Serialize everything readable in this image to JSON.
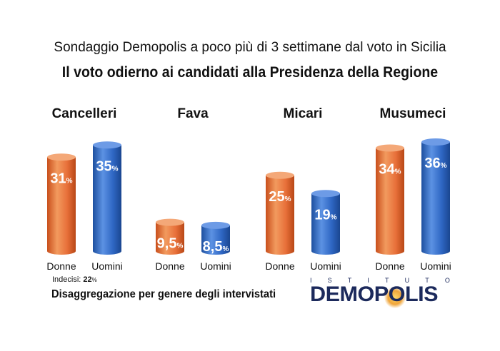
{
  "header": {
    "subtitle": "Sondaggio Demopolis a poco più di 3 settimane dal voto in Sicilia",
    "title": "Il voto odierno ai candidati alla Presidenza della Regione"
  },
  "chart_data": {
    "type": "bar",
    "categories": [
      "Cancelleri",
      "Fava",
      "Micari",
      "Musumeci"
    ],
    "series": [
      {
        "name": "Donne",
        "values": [
          31,
          9.5,
          25,
          34
        ],
        "labels": [
          "31",
          "9,5",
          "25",
          "34"
        ],
        "color": "#e8703a"
      },
      {
        "name": "Uomini",
        "values": [
          35,
          8.5,
          19,
          36
        ],
        "labels": [
          "35",
          "8,5",
          "19",
          "36"
        ],
        "color": "#2f67c4"
      }
    ],
    "unit": "%",
    "ylim": [
      0,
      40
    ],
    "grid": false,
    "legend": "none"
  },
  "footer": {
    "undecided_label": "Indecisi:",
    "undecided_value": "22",
    "undecided_unit": "%",
    "note": "Disaggregazione per genere degli intervistati"
  },
  "logo": {
    "top_letters": [
      "I",
      "S",
      "T",
      "I",
      "T",
      "U",
      "T",
      "O"
    ],
    "brand": "DEMOPOLIS"
  },
  "colors": {
    "donne": "#e8703a",
    "uomini": "#2f67c4",
    "brand": "#1c2a5c"
  }
}
